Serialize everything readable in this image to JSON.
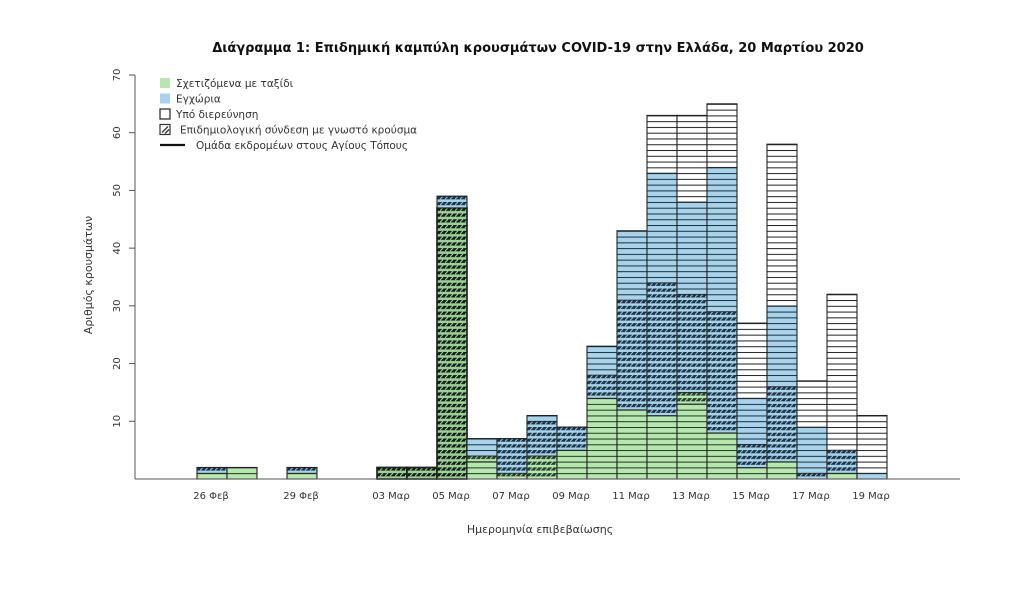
{
  "chart_data": {
    "type": "bar",
    "stacked": true,
    "title": "Διάγραμμα 1: Επιδημική καμπύλη κρουσμάτων COVID-19 στην Ελλάδα, 20 Μαρτίου 2020",
    "xlabel": "Ημερομηνία επιβεβαίωσης",
    "ylabel": "Αριθμός κρουσμάτων",
    "ylim": [
      0,
      70
    ],
    "yticks": [
      10,
      20,
      30,
      40,
      50,
      60,
      70
    ],
    "grid": false,
    "legend_position": "top-left",
    "legend": [
      {
        "key": "travel",
        "label": "Σχετιζόμενα με ταξίδι",
        "symbol": "fill",
        "color": "#b8e6b0"
      },
      {
        "key": "local",
        "label": "Εγχώρια",
        "symbol": "fill",
        "color": "#a9d3ea"
      },
      {
        "key": "investigation",
        "label": "Υπό διερεύνηση",
        "symbol": "box",
        "color": "#ffffff"
      },
      {
        "key": "epi_link",
        "label": "Επιδημιολογική σύνδεση με γνωστό κρούσμα",
        "symbol": "hatch",
        "color": "#333333"
      },
      {
        "key": "pilgrims",
        "label": "Ομάδα εκδρομέων στους Αγίους Τόπους",
        "symbol": "line",
        "color": "#111111"
      }
    ],
    "categories": [
      "26 Φεβ",
      "27 Φεβ",
      "28 Φεβ",
      "29 Φεβ",
      "01 Μαρ",
      "02 Μαρ",
      "03 Μαρ",
      "04 Μαρ",
      "05 Μαρ",
      "06 Μαρ",
      "07 Μαρ",
      "08 Μαρ",
      "09 Μαρ",
      "10 Μαρ",
      "11 Μαρ",
      "12 Μαρ",
      "13 Μαρ",
      "14 Μαρ",
      "15 Μαρ",
      "16 Μαρ",
      "17 Μαρ",
      "18 Μαρ",
      "19 Μαρ"
    ],
    "xtick_labels": [
      "26 Φεβ",
      "29 Φεβ",
      "03 Μαρ",
      "05 Μαρ",
      "07 Μαρ",
      "09 Μαρ",
      "11 Μαρ",
      "13 Μαρ",
      "15 Μαρ",
      "17 Μαρ",
      "19 Μαρ"
    ],
    "series": [
      {
        "name": "Σχετιζόμενα με ταξίδι",
        "key": "travel",
        "values": [
          1,
          2,
          0,
          1,
          0,
          0,
          0,
          0,
          0,
          3,
          0,
          0,
          5,
          14,
          12,
          11,
          13,
          8,
          2,
          3,
          0,
          1,
          0
        ]
      },
      {
        "name": "Σχετιζόμενα με ταξίδι + επιδημιολογική σύνδεση",
        "key": "travel_epi",
        "values": [
          0,
          0,
          0,
          0,
          0,
          0,
          0,
          0,
          0,
          1,
          1,
          4,
          0,
          0,
          0,
          0,
          2,
          0,
          0,
          0,
          0,
          0,
          0
        ]
      },
      {
        "name": "Ομάδα εκδρομέων στους Αγίους Τόπους",
        "key": "pilgrims",
        "values": [
          0,
          0,
          0,
          0,
          0,
          0,
          2,
          2,
          47,
          0,
          0,
          0,
          0,
          0,
          0,
          0,
          0,
          0,
          0,
          0,
          0,
          0,
          0
        ]
      },
      {
        "name": "Εγχώρια + επιδημιολογική σύνδεση",
        "key": "local_epi",
        "values": [
          1,
          0,
          0,
          1,
          0,
          0,
          0,
          0,
          2,
          0,
          6,
          6,
          4,
          4,
          19,
          23,
          17,
          21,
          4,
          13,
          1,
          4,
          0
        ]
      },
      {
        "name": "Εγχώρια",
        "key": "local",
        "values": [
          0,
          0,
          0,
          0,
          0,
          0,
          0,
          0,
          0,
          3,
          0,
          1,
          0,
          5,
          12,
          19,
          16,
          25,
          8,
          14,
          8,
          0,
          1
        ]
      },
      {
        "name": "Υπό διερεύνηση",
        "key": "investigation",
        "values": [
          0,
          0,
          0,
          0,
          0,
          0,
          0,
          0,
          0,
          0,
          0,
          0,
          0,
          0,
          0,
          10,
          15,
          11,
          13,
          28,
          8,
          27,
          10
        ]
      }
    ],
    "totals": [
      2,
      2,
      0,
      2,
      0,
      0,
      2,
      2,
      49,
      7,
      7,
      11,
      9,
      23,
      43,
      63,
      63,
      65,
      27,
      58,
      17,
      32,
      11
    ]
  }
}
